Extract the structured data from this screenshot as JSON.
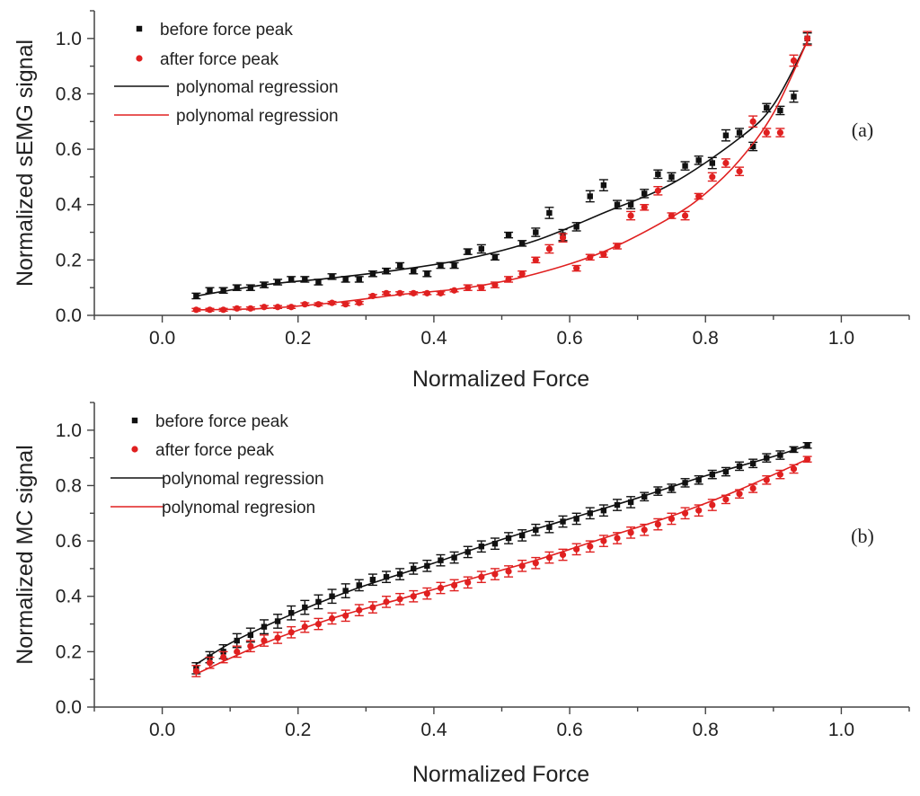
{
  "figure_labels": {
    "panel_a": "(a)",
    "panel_b": "(b)"
  },
  "colors": {
    "before": "#111111",
    "after": "#e02020",
    "axis": "#444444"
  },
  "chart_data": [
    {
      "type": "scatter",
      "panel": "a",
      "xlabel": "Normalized Force",
      "ylabel": "Normalized sEMG signal",
      "xlim": [
        -0.1,
        1.1
      ],
      "ylim": [
        0.0,
        1.1
      ],
      "xticks": [
        0.0,
        0.2,
        0.4,
        0.6,
        0.8,
        1.0
      ],
      "xtick_labels": [
        "0.0",
        "0.2",
        "0.4",
        "0.6",
        "0.8",
        "1.0"
      ],
      "yticks": [
        0.0,
        0.2,
        0.4,
        0.6,
        0.8,
        1.0
      ],
      "ytick_labels": [
        "0.0",
        "0.2",
        "0.4",
        "0.6",
        "0.8",
        "1.0"
      ],
      "legend": [
        {
          "label": "before force peak",
          "kind": "marker",
          "series": 0
        },
        {
          "label": "after force peak",
          "kind": "marker",
          "series": 1
        },
        {
          "label": "polynomal regression",
          "kind": "line",
          "series": 0
        },
        {
          "label": "polynomal regression",
          "kind": "line",
          "series": 1
        }
      ],
      "legend_position": "top-left",
      "x": [
        0.05,
        0.07,
        0.09,
        0.11,
        0.13,
        0.15,
        0.17,
        0.19,
        0.21,
        0.23,
        0.25,
        0.27,
        0.29,
        0.31,
        0.33,
        0.35,
        0.37,
        0.39,
        0.41,
        0.43,
        0.45,
        0.47,
        0.49,
        0.51,
        0.53,
        0.55,
        0.57,
        0.59,
        0.61,
        0.63,
        0.65,
        0.67,
        0.69,
        0.71,
        0.73,
        0.75,
        0.77,
        0.79,
        0.81,
        0.83,
        0.85,
        0.87,
        0.89,
        0.91,
        0.93,
        0.95
      ],
      "series": [
        {
          "name": "before force peak",
          "color": "#111111",
          "marker": "square",
          "values": [
            0.07,
            0.09,
            0.09,
            0.1,
            0.1,
            0.11,
            0.12,
            0.13,
            0.13,
            0.12,
            0.14,
            0.13,
            0.13,
            0.15,
            0.16,
            0.18,
            0.16,
            0.15,
            0.18,
            0.18,
            0.23,
            0.24,
            0.21,
            0.29,
            0.26,
            0.3,
            0.37,
            0.29,
            0.32,
            0.43,
            0.47,
            0.4,
            0.4,
            0.44,
            0.51,
            0.5,
            0.54,
            0.56,
            0.55,
            0.65,
            0.66,
            0.61,
            0.75,
            0.74,
            0.79,
            1.0
          ],
          "errors": [
            0.01,
            0.01,
            0.01,
            0.01,
            0.01,
            0.01,
            0.01,
            0.01,
            0.01,
            0.01,
            0.01,
            0.01,
            0.01,
            0.01,
            0.01,
            0.01,
            0.01,
            0.01,
            0.01,
            0.01,
            0.01,
            0.015,
            0.01,
            0.01,
            0.01,
            0.015,
            0.02,
            0.02,
            0.015,
            0.02,
            0.02,
            0.015,
            0.015,
            0.015,
            0.015,
            0.015,
            0.015,
            0.015,
            0.02,
            0.02,
            0.015,
            0.015,
            0.015,
            0.015,
            0.02,
            0.02
          ],
          "fit": {
            "x": [
              0.05,
              0.15,
              0.25,
              0.35,
              0.45,
              0.55,
              0.65,
              0.75,
              0.85,
              0.9,
              0.95
            ],
            "y": [
              0.07,
              0.11,
              0.135,
              0.165,
              0.205,
              0.27,
              0.37,
              0.475,
              0.64,
              0.76,
              0.99
            ]
          }
        },
        {
          "name": "after force peak",
          "color": "#e02020",
          "marker": "circle",
          "values": [
            0.02,
            0.02,
            0.02,
            0.025,
            0.025,
            0.03,
            0.03,
            0.03,
            0.04,
            0.04,
            0.045,
            0.04,
            0.045,
            0.07,
            0.08,
            0.08,
            0.08,
            0.08,
            0.08,
            0.09,
            0.1,
            0.1,
            0.11,
            0.13,
            0.15,
            0.2,
            0.24,
            0.28,
            0.17,
            0.21,
            0.22,
            0.25,
            0.36,
            0.39,
            0.45,
            0.36,
            0.36,
            0.43,
            0.5,
            0.55,
            0.52,
            0.7,
            0.66,
            0.66,
            0.92,
            1.0
          ],
          "errors": [
            0.005,
            0.005,
            0.005,
            0.005,
            0.005,
            0.005,
            0.005,
            0.005,
            0.005,
            0.005,
            0.005,
            0.005,
            0.005,
            0.005,
            0.005,
            0.005,
            0.005,
            0.005,
            0.005,
            0.005,
            0.01,
            0.01,
            0.01,
            0.01,
            0.01,
            0.01,
            0.015,
            0.015,
            0.01,
            0.01,
            0.01,
            0.01,
            0.015,
            0.01,
            0.015,
            0.01,
            0.015,
            0.01,
            0.015,
            0.015,
            0.015,
            0.02,
            0.015,
            0.015,
            0.02,
            0.025
          ],
          "fit": {
            "x": [
              0.05,
              0.15,
              0.25,
              0.35,
              0.45,
              0.55,
              0.65,
              0.75,
              0.8,
              0.85,
              0.9,
              0.95
            ],
            "y": [
              0.02,
              0.025,
              0.045,
              0.075,
              0.1,
              0.15,
              0.23,
              0.355,
              0.44,
              0.56,
              0.73,
              0.99
            ]
          }
        }
      ]
    },
    {
      "type": "scatter",
      "panel": "b",
      "xlabel": "Normalized Force",
      "ylabel": "Normalized MC signal",
      "xlim": [
        -0.1,
        1.1
      ],
      "ylim": [
        0.0,
        1.1
      ],
      "xticks": [
        0.0,
        0.2,
        0.4,
        0.6,
        0.8,
        1.0
      ],
      "xtick_labels": [
        "0.0",
        "0.2",
        "0.4",
        "0.6",
        "0.8",
        "1.0"
      ],
      "yticks": [
        0.0,
        0.2,
        0.4,
        0.6,
        0.8,
        1.0
      ],
      "ytick_labels": [
        "0.0",
        "0.2",
        "0.4",
        "0.6",
        "0.8",
        "1.0"
      ],
      "legend": [
        {
          "label": "before force peak",
          "kind": "marker",
          "series": 0
        },
        {
          "label": "after force peak",
          "kind": "marker",
          "series": 1
        },
        {
          "label": "polynomal regression",
          "kind": "line",
          "series": 0
        },
        {
          "label": "polynomal regresion",
          "kind": "line",
          "series": 1
        }
      ],
      "legend_position": "top-left",
      "x": [
        0.05,
        0.07,
        0.09,
        0.11,
        0.13,
        0.15,
        0.17,
        0.19,
        0.21,
        0.23,
        0.25,
        0.27,
        0.29,
        0.31,
        0.33,
        0.35,
        0.37,
        0.39,
        0.41,
        0.43,
        0.45,
        0.47,
        0.49,
        0.51,
        0.53,
        0.55,
        0.57,
        0.59,
        0.61,
        0.63,
        0.65,
        0.67,
        0.69,
        0.71,
        0.73,
        0.75,
        0.77,
        0.79,
        0.81,
        0.83,
        0.85,
        0.87,
        0.89,
        0.91,
        0.93,
        0.95
      ],
      "series": [
        {
          "name": "before force peak",
          "color": "#111111",
          "marker": "square",
          "values": [
            0.14,
            0.18,
            0.2,
            0.24,
            0.26,
            0.29,
            0.31,
            0.34,
            0.36,
            0.38,
            0.4,
            0.42,
            0.44,
            0.46,
            0.47,
            0.48,
            0.5,
            0.51,
            0.53,
            0.54,
            0.56,
            0.58,
            0.59,
            0.61,
            0.62,
            0.64,
            0.65,
            0.67,
            0.68,
            0.7,
            0.71,
            0.73,
            0.74,
            0.76,
            0.78,
            0.79,
            0.81,
            0.82,
            0.84,
            0.85,
            0.87,
            0.88,
            0.9,
            0.91,
            0.93,
            0.945
          ],
          "errors": [
            0.02,
            0.02,
            0.025,
            0.025,
            0.025,
            0.025,
            0.025,
            0.025,
            0.025,
            0.025,
            0.025,
            0.025,
            0.02,
            0.02,
            0.02,
            0.02,
            0.02,
            0.02,
            0.02,
            0.02,
            0.02,
            0.02,
            0.02,
            0.02,
            0.02,
            0.02,
            0.02,
            0.02,
            0.02,
            0.02,
            0.02,
            0.02,
            0.02,
            0.015,
            0.015,
            0.015,
            0.015,
            0.015,
            0.015,
            0.015,
            0.015,
            0.015,
            0.015,
            0.015,
            0.01,
            0.01
          ],
          "fit": {
            "x": [
              0.05,
              0.1,
              0.15,
              0.2,
              0.25,
              0.3,
              0.4,
              0.5,
              0.6,
              0.7,
              0.8,
              0.9,
              0.95
            ],
            "y": [
              0.155,
              0.23,
              0.29,
              0.345,
              0.395,
              0.44,
              0.52,
              0.605,
              0.68,
              0.755,
              0.835,
              0.905,
              0.945
            ]
          }
        },
        {
          "name": "after force peak",
          "color": "#e02020",
          "marker": "circle",
          "values": [
            0.13,
            0.16,
            0.18,
            0.2,
            0.22,
            0.24,
            0.25,
            0.27,
            0.29,
            0.3,
            0.32,
            0.33,
            0.35,
            0.36,
            0.38,
            0.39,
            0.4,
            0.41,
            0.43,
            0.44,
            0.45,
            0.47,
            0.48,
            0.49,
            0.51,
            0.52,
            0.54,
            0.55,
            0.57,
            0.58,
            0.6,
            0.61,
            0.63,
            0.64,
            0.66,
            0.68,
            0.7,
            0.71,
            0.73,
            0.75,
            0.77,
            0.79,
            0.82,
            0.84,
            0.86,
            0.895
          ],
          "errors": [
            0.02,
            0.02,
            0.02,
            0.02,
            0.02,
            0.02,
            0.02,
            0.02,
            0.02,
            0.02,
            0.02,
            0.02,
            0.02,
            0.02,
            0.02,
            0.02,
            0.02,
            0.02,
            0.02,
            0.02,
            0.02,
            0.02,
            0.02,
            0.02,
            0.02,
            0.02,
            0.02,
            0.02,
            0.02,
            0.02,
            0.02,
            0.02,
            0.02,
            0.02,
            0.02,
            0.02,
            0.02,
            0.02,
            0.02,
            0.015,
            0.015,
            0.015,
            0.015,
            0.015,
            0.015,
            0.01
          ],
          "fit": {
            "x": [
              0.05,
              0.15,
              0.25,
              0.35,
              0.45,
              0.55,
              0.65,
              0.75,
              0.85,
              0.95
            ],
            "y": [
              0.12,
              0.23,
              0.32,
              0.39,
              0.46,
              0.53,
              0.61,
              0.69,
              0.785,
              0.895
            ]
          }
        }
      ]
    }
  ]
}
